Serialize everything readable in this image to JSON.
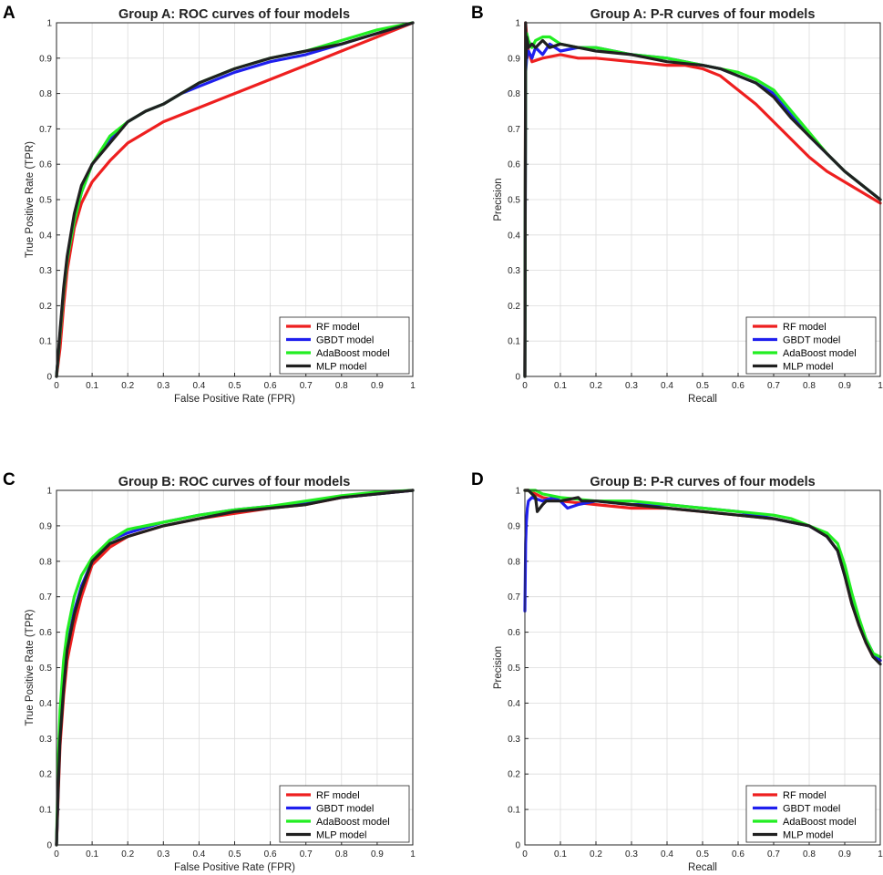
{
  "colors": {
    "RF": "#ee1f1f",
    "GBDT": "#1f1fee",
    "AdaBoost": "#22ee22",
    "MLP": "#202020"
  },
  "chart_data": [
    {
      "panel": "A",
      "type": "line",
      "title": "Group A: ROC curves of four models",
      "xlabel": "False Positive Rate (FPR)",
      "ylabel": "True Positive Rate (TPR)",
      "xlim": [
        0,
        1
      ],
      "ylim": [
        0,
        1
      ],
      "grid": true,
      "legend_position": "bottom-right",
      "xticks": [
        "0",
        "0.1",
        "0.2",
        "0.3",
        "0.4",
        "0.5",
        "0.6",
        "0.7",
        "0.8",
        "0.9",
        "1"
      ],
      "yticks": [
        "0",
        "0.1",
        "0.2",
        "0.3",
        "0.4",
        "0.5",
        "0.6",
        "0.7",
        "0.8",
        "0.9",
        "1"
      ],
      "series": [
        {
          "name": "RF model",
          "key": "RF",
          "x": [
            0,
            0.01,
            0.02,
            0.03,
            0.05,
            0.07,
            0.1,
            0.15,
            0.2,
            0.25,
            0.3,
            0.35,
            0.4,
            0.5,
            0.6,
            0.7,
            0.8,
            0.9,
            1
          ],
          "y": [
            0,
            0.08,
            0.2,
            0.3,
            0.42,
            0.49,
            0.55,
            0.61,
            0.66,
            0.69,
            0.72,
            0.74,
            0.76,
            0.8,
            0.84,
            0.88,
            0.92,
            0.96,
            1
          ]
        },
        {
          "name": "GBDT model",
          "key": "GBDT",
          "x": [
            0,
            0.01,
            0.02,
            0.03,
            0.05,
            0.07,
            0.1,
            0.15,
            0.2,
            0.25,
            0.3,
            0.35,
            0.4,
            0.5,
            0.6,
            0.7,
            0.8,
            0.9,
            1
          ],
          "y": [
            0,
            0.12,
            0.24,
            0.33,
            0.44,
            0.52,
            0.6,
            0.67,
            0.72,
            0.75,
            0.77,
            0.8,
            0.82,
            0.86,
            0.89,
            0.91,
            0.94,
            0.97,
            1
          ]
        },
        {
          "name": "AdaBoost model",
          "key": "AdaBoost",
          "x": [
            0,
            0.01,
            0.02,
            0.03,
            0.05,
            0.07,
            0.1,
            0.15,
            0.2,
            0.25,
            0.3,
            0.35,
            0.4,
            0.5,
            0.6,
            0.7,
            0.8,
            0.9,
            1
          ],
          "y": [
            0,
            0.12,
            0.24,
            0.33,
            0.44,
            0.52,
            0.6,
            0.68,
            0.72,
            0.75,
            0.77,
            0.8,
            0.83,
            0.87,
            0.9,
            0.92,
            0.95,
            0.98,
            1
          ]
        },
        {
          "name": "MLP model",
          "key": "MLP",
          "x": [
            0,
            0.01,
            0.02,
            0.03,
            0.05,
            0.07,
            0.1,
            0.15,
            0.2,
            0.25,
            0.3,
            0.35,
            0.4,
            0.5,
            0.6,
            0.7,
            0.8,
            0.9,
            1
          ],
          "y": [
            0,
            0.13,
            0.25,
            0.34,
            0.46,
            0.54,
            0.6,
            0.66,
            0.72,
            0.75,
            0.77,
            0.8,
            0.83,
            0.87,
            0.9,
            0.92,
            0.94,
            0.97,
            1
          ]
        }
      ]
    },
    {
      "panel": "B",
      "type": "line",
      "title": "Group A: P-R curves of four models",
      "xlabel": "Recall",
      "ylabel": "Precision",
      "xlim": [
        0,
        1
      ],
      "ylim": [
        0,
        1
      ],
      "grid": true,
      "legend_position": "bottom-right",
      "xticks": [
        "0",
        "0.1",
        "0.2",
        "0.3",
        "0.4",
        "0.5",
        "0.6",
        "0.7",
        "0.8",
        "0.9",
        "1"
      ],
      "yticks": [
        "0",
        "0.1",
        "0.2",
        "0.3",
        "0.4",
        "0.5",
        "0.6",
        "0.7",
        "0.8",
        "0.9",
        "1"
      ],
      "series": [
        {
          "name": "RF model",
          "key": "RF",
          "x": [
            0,
            0.002,
            0.005,
            0.01,
            0.02,
            0.05,
            0.1,
            0.15,
            0.2,
            0.3,
            0.4,
            0.45,
            0.5,
            0.55,
            0.6,
            0.65,
            0.7,
            0.75,
            0.8,
            0.85,
            0.9,
            0.95,
            1
          ],
          "y": [
            0,
            1,
            0.96,
            0.92,
            0.89,
            0.9,
            0.91,
            0.9,
            0.9,
            0.89,
            0.88,
            0.88,
            0.87,
            0.85,
            0.81,
            0.77,
            0.72,
            0.67,
            0.62,
            0.58,
            0.55,
            0.52,
            0.49
          ]
        },
        {
          "name": "GBDT model",
          "key": "GBDT",
          "x": [
            0,
            0.002,
            0.005,
            0.01,
            0.02,
            0.03,
            0.05,
            0.07,
            0.1,
            0.15,
            0.2,
            0.3,
            0.4,
            0.5,
            0.55,
            0.6,
            0.65,
            0.7,
            0.75,
            0.8,
            0.85,
            0.9,
            0.95,
            1
          ],
          "y": [
            0,
            0.86,
            0.9,
            0.92,
            0.9,
            0.93,
            0.91,
            0.94,
            0.92,
            0.93,
            0.93,
            0.91,
            0.9,
            0.88,
            0.87,
            0.85,
            0.83,
            0.8,
            0.74,
            0.68,
            0.63,
            0.58,
            0.54,
            0.5
          ]
        },
        {
          "name": "AdaBoost model",
          "key": "AdaBoost",
          "x": [
            0,
            0.002,
            0.005,
            0.01,
            0.02,
            0.03,
            0.05,
            0.07,
            0.1,
            0.15,
            0.2,
            0.3,
            0.4,
            0.5,
            0.55,
            0.6,
            0.65,
            0.7,
            0.75,
            0.8,
            0.85,
            0.9,
            0.95,
            1
          ],
          "y": [
            0,
            0.93,
            0.97,
            0.95,
            0.93,
            0.95,
            0.96,
            0.96,
            0.94,
            0.93,
            0.93,
            0.91,
            0.9,
            0.88,
            0.87,
            0.86,
            0.84,
            0.81,
            0.75,
            0.69,
            0.63,
            0.58,
            0.54,
            0.5
          ]
        },
        {
          "name": "MLP model",
          "key": "MLP",
          "x": [
            0,
            0.002,
            0.003,
            0.005,
            0.01,
            0.02,
            0.03,
            0.05,
            0.07,
            0.1,
            0.15,
            0.2,
            0.3,
            0.4,
            0.5,
            0.55,
            0.6,
            0.65,
            0.7,
            0.75,
            0.8,
            0.85,
            0.9,
            0.95,
            1
          ],
          "y": [
            0,
            1,
            0.9,
            0.96,
            0.93,
            0.94,
            0.93,
            0.95,
            0.93,
            0.94,
            0.93,
            0.92,
            0.91,
            0.89,
            0.88,
            0.87,
            0.85,
            0.83,
            0.79,
            0.73,
            0.68,
            0.63,
            0.58,
            0.54,
            0.5
          ]
        }
      ]
    },
    {
      "panel": "C",
      "type": "line",
      "title": "Group B: ROC curves of four models",
      "xlabel": "False Positive Rate (FPR)",
      "ylabel": "True Positive Rate (TPR)",
      "xlim": [
        0,
        1
      ],
      "ylim": [
        0,
        1
      ],
      "grid": true,
      "legend_position": "bottom-right",
      "xticks": [
        "0",
        "0.1",
        "0.2",
        "0.3",
        "0.4",
        "0.5",
        "0.6",
        "0.7",
        "0.8",
        "0.9",
        "1"
      ],
      "yticks": [
        "0",
        "0.1",
        "0.2",
        "0.3",
        "0.4",
        "0.5",
        "0.6",
        "0.7",
        "0.8",
        "0.9",
        "1"
      ],
      "series": [
        {
          "name": "RF model",
          "key": "RF",
          "x": [
            0,
            0.005,
            0.01,
            0.02,
            0.03,
            0.05,
            0.07,
            0.1,
            0.15,
            0.2,
            0.3,
            0.4,
            0.5,
            0.6,
            0.7,
            0.8,
            0.9,
            1
          ],
          "y": [
            0,
            0.15,
            0.28,
            0.42,
            0.52,
            0.62,
            0.7,
            0.79,
            0.84,
            0.87,
            0.9,
            0.92,
            0.935,
            0.95,
            0.96,
            0.98,
            0.99,
            1
          ]
        },
        {
          "name": "GBDT model",
          "key": "GBDT",
          "x": [
            0,
            0.005,
            0.01,
            0.02,
            0.03,
            0.05,
            0.07,
            0.1,
            0.15,
            0.2,
            0.3,
            0.4,
            0.5,
            0.6,
            0.7,
            0.8,
            0.9,
            1
          ],
          "y": [
            0,
            0.18,
            0.32,
            0.46,
            0.56,
            0.66,
            0.73,
            0.8,
            0.86,
            0.88,
            0.91,
            0.93,
            0.945,
            0.955,
            0.965,
            0.98,
            0.99,
            1
          ]
        },
        {
          "name": "AdaBoost model",
          "key": "AdaBoost",
          "x": [
            0,
            0.005,
            0.01,
            0.02,
            0.03,
            0.05,
            0.07,
            0.1,
            0.15,
            0.2,
            0.3,
            0.4,
            0.5,
            0.6,
            0.7,
            0.8,
            0.9,
            1
          ],
          "y": [
            0,
            0.25,
            0.38,
            0.52,
            0.6,
            0.7,
            0.76,
            0.81,
            0.86,
            0.89,
            0.91,
            0.93,
            0.945,
            0.955,
            0.97,
            0.985,
            0.995,
            1
          ]
        },
        {
          "name": "MLP model",
          "key": "MLP",
          "x": [
            0,
            0.005,
            0.01,
            0.02,
            0.03,
            0.05,
            0.07,
            0.1,
            0.15,
            0.2,
            0.3,
            0.4,
            0.5,
            0.6,
            0.7,
            0.8,
            0.9,
            1
          ],
          "y": [
            0,
            0.17,
            0.3,
            0.44,
            0.55,
            0.65,
            0.72,
            0.8,
            0.85,
            0.87,
            0.9,
            0.92,
            0.94,
            0.95,
            0.96,
            0.98,
            0.99,
            1
          ]
        }
      ]
    },
    {
      "panel": "D",
      "type": "line",
      "title": "Group B: P-R curves of four models",
      "xlabel": "Recall",
      "ylabel": "Precision",
      "xlim": [
        0,
        1
      ],
      "ylim": [
        0,
        1
      ],
      "grid": true,
      "legend_position": "bottom-right",
      "xticks": [
        "0",
        "0.1",
        "0.2",
        "0.3",
        "0.4",
        "0.5",
        "0.6",
        "0.7",
        "0.8",
        "0.9",
        "1"
      ],
      "yticks": [
        "0",
        "0.1",
        "0.2",
        "0.3",
        "0.4",
        "0.5",
        "0.6",
        "0.7",
        "0.8",
        "0.9",
        "1"
      ],
      "series": [
        {
          "name": "RF model",
          "key": "RF",
          "x": [
            0,
            0.01,
            0.03,
            0.05,
            0.1,
            0.2,
            0.3,
            0.4,
            0.5,
            0.6,
            0.7,
            0.75,
            0.8,
            0.85,
            0.88,
            0.9,
            0.92,
            0.94,
            0.96,
            0.98,
            1
          ],
          "y": [
            1,
            1,
            0.99,
            0.98,
            0.97,
            0.96,
            0.95,
            0.95,
            0.94,
            0.93,
            0.92,
            0.91,
            0.9,
            0.87,
            0.83,
            0.76,
            0.68,
            0.62,
            0.57,
            0.53,
            0.52
          ]
        },
        {
          "name": "GBDT model",
          "key": "GBDT",
          "x": [
            0,
            0.002,
            0.004,
            0.007,
            0.01,
            0.02,
            0.05,
            0.08,
            0.1,
            0.12,
            0.15,
            0.2,
            0.3,
            0.4,
            0.5,
            0.6,
            0.7,
            0.75,
            0.8,
            0.85,
            0.88,
            0.9,
            0.92,
            0.94,
            0.96,
            0.98,
            1
          ],
          "y": [
            0.66,
            0.85,
            0.91,
            0.95,
            0.97,
            0.98,
            0.97,
            0.98,
            0.97,
            0.95,
            0.96,
            0.97,
            0.96,
            0.96,
            0.95,
            0.94,
            0.92,
            0.91,
            0.9,
            0.87,
            0.83,
            0.76,
            0.69,
            0.63,
            0.58,
            0.54,
            0.52
          ]
        },
        {
          "name": "AdaBoost model",
          "key": "AdaBoost",
          "x": [
            0,
            0.01,
            0.03,
            0.05,
            0.1,
            0.2,
            0.3,
            0.4,
            0.5,
            0.6,
            0.7,
            0.75,
            0.8,
            0.85,
            0.88,
            0.9,
            0.92,
            0.94,
            0.96,
            0.98,
            1
          ],
          "y": [
            1,
            1,
            1,
            0.99,
            0.98,
            0.97,
            0.97,
            0.96,
            0.95,
            0.94,
            0.93,
            0.92,
            0.9,
            0.88,
            0.85,
            0.79,
            0.71,
            0.64,
            0.58,
            0.54,
            0.53
          ]
        },
        {
          "name": "MLP model",
          "key": "MLP",
          "x": [
            0,
            0.01,
            0.02,
            0.03,
            0.035,
            0.05,
            0.06,
            0.1,
            0.15,
            0.16,
            0.2,
            0.3,
            0.4,
            0.5,
            0.6,
            0.7,
            0.75,
            0.8,
            0.85,
            0.88,
            0.9,
            0.92,
            0.94,
            0.96,
            0.98,
            1
          ],
          "y": [
            1,
            1,
            0.99,
            0.98,
            0.94,
            0.96,
            0.97,
            0.97,
            0.98,
            0.97,
            0.97,
            0.96,
            0.95,
            0.94,
            0.93,
            0.92,
            0.91,
            0.9,
            0.87,
            0.83,
            0.76,
            0.68,
            0.62,
            0.57,
            0.53,
            0.51
          ]
        }
      ]
    }
  ]
}
